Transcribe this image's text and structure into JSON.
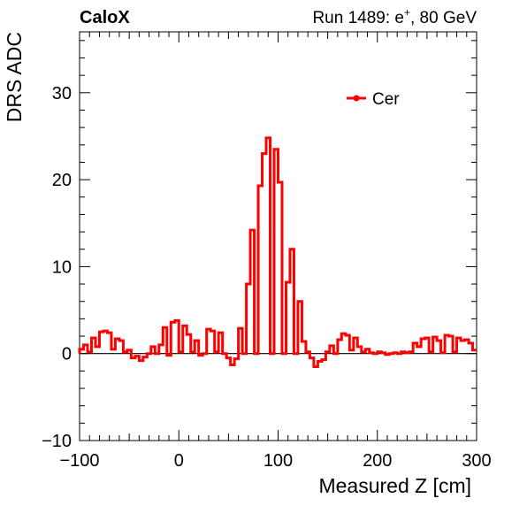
{
  "header": {
    "experiment": "CaloX",
    "run_label": "Run 1489: e",
    "run_sup": "+",
    "run_suffix": ", 80 GeV"
  },
  "chart_data": {
    "type": "line",
    "style": "step-histogram",
    "xlabel": "Measured Z [cm]",
    "ylabel": "DRS ADC",
    "xlim": [
      -100,
      300
    ],
    "ylim": [
      -10,
      37
    ],
    "xticks": [
      -100,
      0,
      100,
      200,
      300
    ],
    "xtick_labels": [
      "−100",
      "0",
      "100",
      "200",
      "300"
    ],
    "yticks": [
      -10,
      0,
      10,
      20,
      30
    ],
    "ytick_labels": [
      "−10",
      "0",
      "10",
      "20",
      "30"
    ],
    "grid": false,
    "zero_line": true,
    "legend_position": "top-right",
    "series": [
      {
        "name": "Cer",
        "color": "#ff0000",
        "bin_width": 4,
        "x_start": -100,
        "values": [
          0.5,
          1.0,
          0.2,
          1.8,
          0.8,
          2.5,
          2.6,
          2.4,
          0.5,
          1.7,
          1.5,
          0.2,
          0.4,
          -0.5,
          -0.3,
          -0.8,
          -0.4,
          0.0,
          0.8,
          0.0,
          1.0,
          3.0,
          -0.2,
          3.6,
          3.8,
          0.2,
          3.2,
          2.2,
          0.2,
          1.5,
          -0.2,
          0.0,
          2.8,
          2.6,
          0.2,
          2.4,
          0.0,
          -0.5,
          -1.3,
          -0.6,
          2.9,
          0.0,
          8.0,
          14.2,
          0.0,
          19.3,
          23.0,
          24.8,
          0.0,
          23.5,
          19.7,
          0.0,
          8.2,
          12.0,
          0.0,
          6.0,
          1.4,
          0.2,
          -0.5,
          -1.5,
          -0.9,
          -0.7,
          0.2,
          0.9,
          0.0,
          1.6,
          2.3,
          2.1,
          0.4,
          1.8,
          0.8,
          0.2,
          0.5,
          0.1,
          0.0,
          0.2,
          0.1,
          -0.1,
          0.0,
          0.1,
          0.0,
          0.2,
          0.1,
          0.2,
          1.2,
          0.8,
          1.7,
          1.8,
          0.2,
          1.9,
          1.5,
          0.1,
          2.1,
          2.0,
          0.2,
          1.8,
          1.5,
          1.6,
          1.2,
          0.4
        ]
      }
    ]
  }
}
